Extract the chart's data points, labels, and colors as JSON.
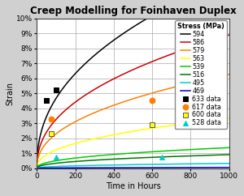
{
  "title": "Creep Modelling for Foinhaven Duplex",
  "xlabel": "Time in Hours",
  "ylabel": "Strain",
  "xlim": [
    0,
    1000
  ],
  "ylim": [
    0,
    0.1
  ],
  "yticks": [
    0,
    0.01,
    0.02,
    0.03,
    0.04,
    0.05,
    0.06,
    0.07,
    0.08,
    0.09,
    0.1
  ],
  "xticks": [
    0,
    200,
    400,
    600,
    800,
    1000
  ],
  "curves": [
    {
      "label": "594",
      "color": "#000000",
      "A": 0.0063,
      "n": 0.435
    },
    {
      "label": "586",
      "color": "#cc0000",
      "A": 0.0044,
      "n": 0.435
    },
    {
      "label": "579",
      "color": "#ff8000",
      "A": 0.0031,
      "n": 0.435
    },
    {
      "label": "563",
      "color": "#ffff00",
      "A": 0.00165,
      "n": 0.435
    },
    {
      "label": "539",
      "color": "#00cc00",
      "A": 0.00068,
      "n": 0.435
    },
    {
      "label": "516",
      "color": "#007700",
      "A": 0.00045,
      "n": 0.435
    },
    {
      "label": "495",
      "color": "#00cccc",
      "A": 0.00016,
      "n": 0.435
    },
    {
      "label": "469",
      "color": "#0000cc",
      "A": 2.8e-05,
      "n": 0.435
    }
  ],
  "data_points": [
    {
      "label": "633 data",
      "color": "#000000",
      "marker": "s",
      "markersize": 5,
      "x": [
        50,
        100
      ],
      "y": [
        0.045,
        0.052
      ]
    },
    {
      "label": "617 data",
      "color": "#ff8000",
      "marker": "o",
      "markersize": 5,
      "x": [
        75,
        600
      ],
      "y": [
        0.033,
        0.045
      ]
    },
    {
      "label": "600 data",
      "color": "#ffff00",
      "marker": "s",
      "markersize": 5,
      "x": [
        75,
        600
      ],
      "y": [
        0.023,
        0.029
      ]
    },
    {
      "label": "528 data",
      "color": "#00cccc",
      "marker": "^",
      "markersize": 5,
      "x": [
        100,
        650
      ],
      "y": [
        0.0075,
        0.0075
      ]
    }
  ],
  "background_color": "#ffffff",
  "grid_color": "#aaaaaa",
  "legend_fontsize": 5.8,
  "title_fontsize": 8.5,
  "axis_fontsize": 7.0,
  "tick_fontsize": 6.5,
  "outer_bg": "#d0d0d0"
}
